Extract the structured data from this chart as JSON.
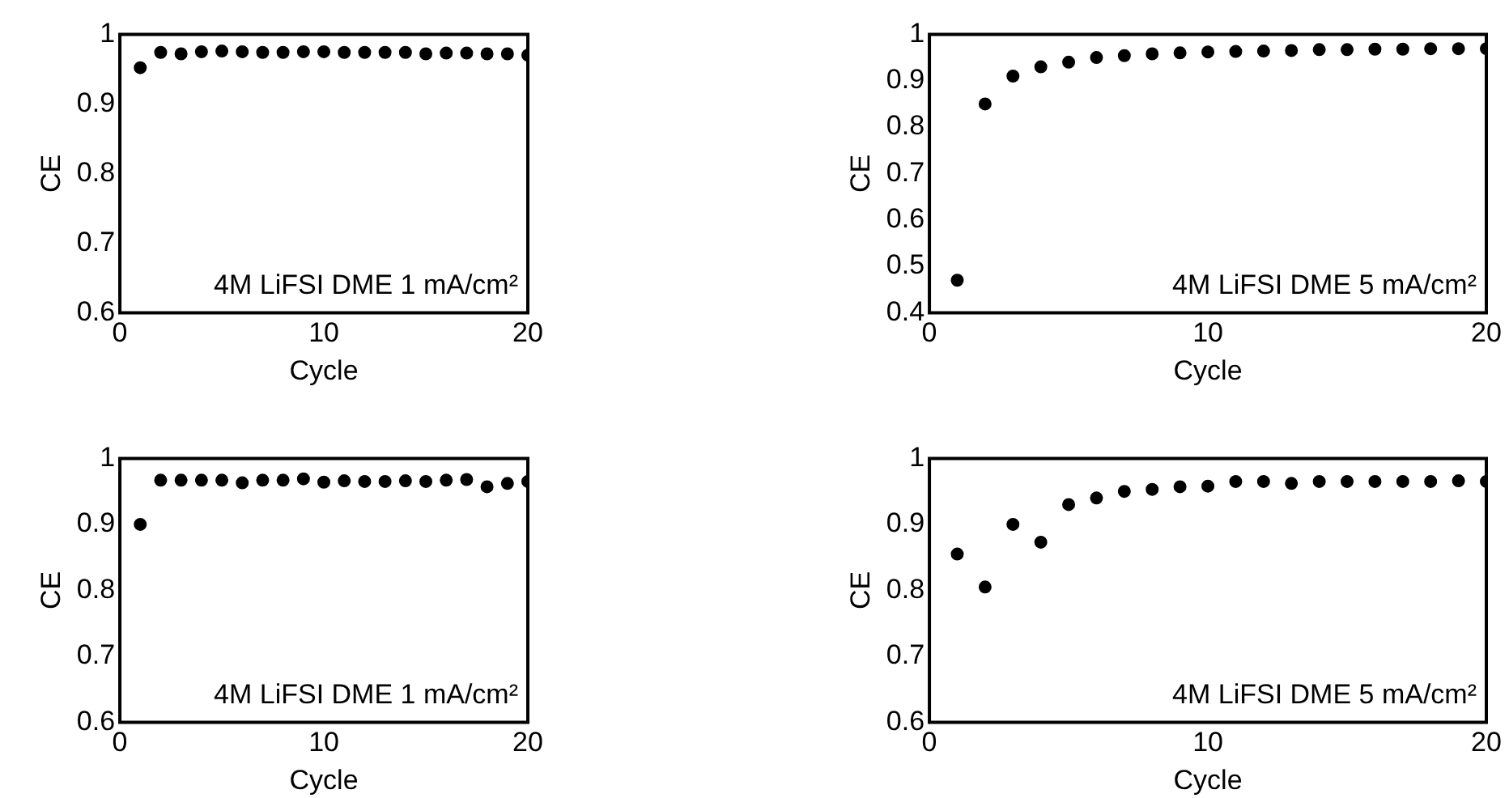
{
  "chart_data": [
    {
      "type": "scatter",
      "xlabel": "Cycle",
      "ylabel": "CE",
      "annotations": [
        "4M LiFSI DME 1 mA/cm²"
      ],
      "color": "#000000",
      "marker": "circle",
      "xlim": [
        0,
        20
      ],
      "xticks": [
        0,
        10,
        20
      ],
      "ylim": [
        0.6,
        1
      ],
      "yticks": [
        0.6,
        0.7,
        0.8,
        0.9,
        1
      ],
      "x": [
        1,
        2,
        3,
        4,
        5,
        6,
        7,
        8,
        9,
        10,
        11,
        12,
        13,
        14,
        15,
        16,
        17,
        18,
        19,
        20
      ],
      "values": [
        0.952,
        0.974,
        0.972,
        0.975,
        0.976,
        0.975,
        0.974,
        0.974,
        0.975,
        0.975,
        0.974,
        0.974,
        0.974,
        0.974,
        0.972,
        0.973,
        0.973,
        0.972,
        0.972,
        0.97
      ]
    },
    {
      "type": "scatter",
      "xlabel": "Cycle",
      "ylabel": "CE",
      "annotations": [
        "4M LiFSI DME 5 mA/cm²"
      ],
      "color": "#000000",
      "marker": "circle",
      "xlim": [
        0,
        20
      ],
      "xticks": [
        0,
        10,
        20
      ],
      "ylim": [
        0.4,
        1
      ],
      "yticks": [
        0.4,
        0.5,
        0.6,
        0.7,
        0.8,
        0.9,
        1
      ],
      "x": [
        1,
        2,
        3,
        4,
        5,
        6,
        7,
        8,
        9,
        10,
        11,
        12,
        13,
        14,
        15,
        16,
        17,
        18,
        19,
        20
      ],
      "values": [
        0.47,
        0.85,
        0.91,
        0.93,
        0.94,
        0.95,
        0.954,
        0.958,
        0.96,
        0.962,
        0.963,
        0.964,
        0.965,
        0.967,
        0.967,
        0.968,
        0.968,
        0.969,
        0.969,
        0.969
      ]
    },
    {
      "type": "scatter",
      "xlabel": "Cycle",
      "ylabel": "CE",
      "annotations": [
        "4M LiFSI DME 1 mA/cm²"
      ],
      "color": "#000000",
      "marker": "circle",
      "xlim": [
        0,
        20
      ],
      "xticks": [
        0,
        10,
        20
      ],
      "ylim": [
        0.6,
        1
      ],
      "yticks": [
        0.6,
        0.7,
        0.8,
        0.9,
        1
      ],
      "x": [
        1,
        2,
        3,
        4,
        5,
        6,
        7,
        8,
        9,
        10,
        11,
        12,
        13,
        14,
        15,
        16,
        17,
        18,
        19,
        20
      ],
      "values": [
        0.9,
        0.967,
        0.967,
        0.967,
        0.967,
        0.963,
        0.967,
        0.967,
        0.969,
        0.964,
        0.966,
        0.965,
        0.965,
        0.966,
        0.965,
        0.967,
        0.968,
        0.957,
        0.962,
        0.965
      ]
    },
    {
      "type": "scatter",
      "xlabel": "Cycle",
      "ylabel": "CE",
      "annotations": [
        "4M LiFSI DME 5 mA/cm²"
      ],
      "color": "#000000",
      "marker": "circle",
      "xlim": [
        0,
        20
      ],
      "xticks": [
        0,
        10,
        20
      ],
      "ylim": [
        0.6,
        1
      ],
      "yticks": [
        0.6,
        0.7,
        0.8,
        0.9,
        1
      ],
      "x": [
        1,
        2,
        3,
        4,
        5,
        6,
        7,
        8,
        9,
        10,
        11,
        12,
        13,
        14,
        15,
        16,
        17,
        18,
        19,
        20
      ],
      "values": [
        0.855,
        0.805,
        0.9,
        0.873,
        0.93,
        0.94,
        0.95,
        0.953,
        0.957,
        0.958,
        0.965,
        0.965,
        0.962,
        0.965,
        0.965,
        0.965,
        0.965,
        0.965,
        0.966,
        0.965
      ]
    }
  ]
}
